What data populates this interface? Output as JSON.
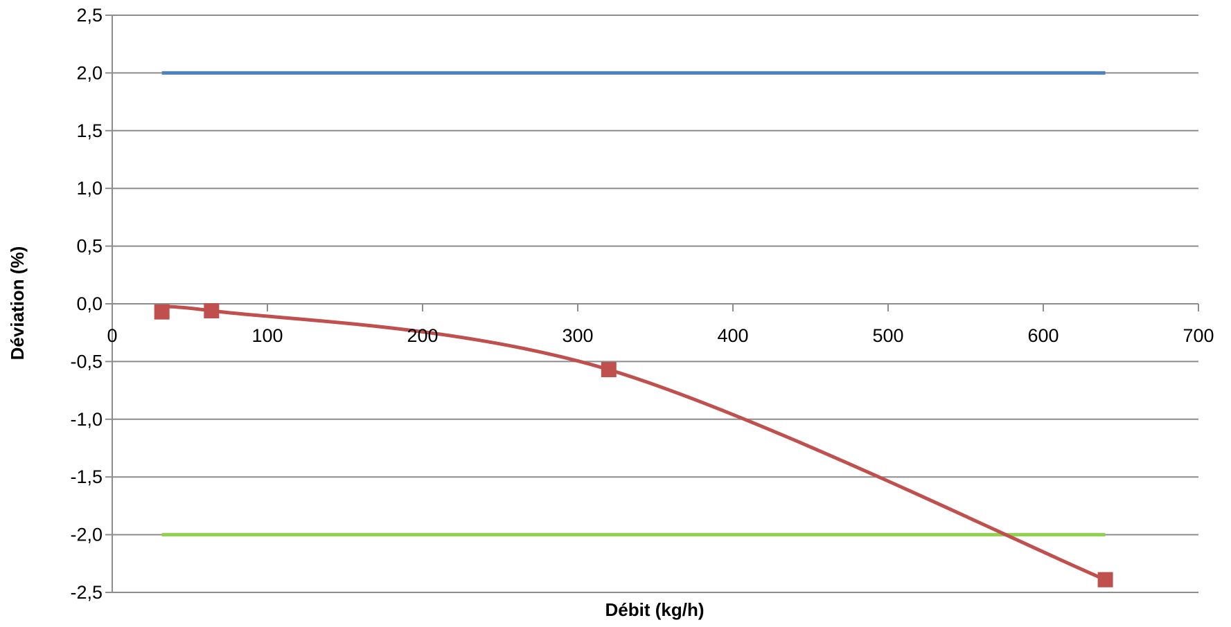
{
  "chart_data": {
    "type": "scatter",
    "title": "",
    "xlabel": "Débit (kg/h)",
    "ylabel": "Déviation (%)",
    "xlim": [
      0,
      700
    ],
    "ylim": [
      -2.5,
      2.5
    ],
    "x_ticks": [
      "0",
      "100",
      "200",
      "300",
      "400",
      "500",
      "600",
      "700"
    ],
    "y_ticks": [
      "2,5",
      "2,0",
      "1,5",
      "1,0",
      "0,5",
      "0,0",
      "-0,5",
      "-1,0",
      "-1,5",
      "-2,0",
      "-2,5"
    ],
    "grid": "horizontal",
    "legend": "none",
    "series": [
      {
        "x": [
          32,
          640
        ],
        "y": [
          2.0,
          2.0
        ],
        "color": "#4f81bd",
        "markers": false,
        "smooth": false
      },
      {
        "x": [
          32,
          640
        ],
        "y": [
          -2.0,
          -2.0
        ],
        "color": "#92d050",
        "markers": false,
        "smooth": false
      },
      {
        "x": [
          32,
          64,
          320,
          640
        ],
        "y": [
          -0.07,
          -0.06,
          -0.57,
          -2.39
        ],
        "color": "#c0504d",
        "markers": true,
        "smooth": true
      }
    ]
  }
}
